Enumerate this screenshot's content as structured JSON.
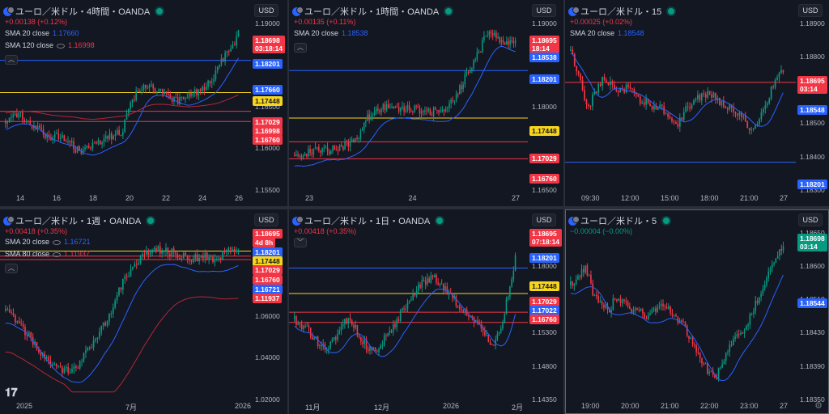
{
  "currency_label": "USD",
  "colors": {
    "up": "#089981",
    "down": "#f23645",
    "sma_blue": "#2962ff",
    "sma_red": "#f23645",
    "support_blue": "#2962ff",
    "line_yellow": "#f7d51d",
    "line_red": "#f23645"
  },
  "icons": {
    "symbol": "currency-pair-icon",
    "live": "live-dot-icon",
    "collapse": "chevron-up-icon",
    "logo": "tradingview-logo-icon",
    "settings": "gear-icon"
  },
  "panels": [
    {
      "title": "ユーロ／米ドル・4時間・OANDA",
      "change": "+0.00138 (+0.12%)",
      "change_color": "#f23645",
      "indicators": [
        {
          "name": "SMA 20 close",
          "value": "1.17660",
          "color": "#2962ff"
        },
        {
          "name": "SMA 120 close",
          "value": "1.16998",
          "color": "#f23645"
        }
      ],
      "y_ticks": [
        "1.19000",
        "1.18000",
        "1.16500",
        "1.16000",
        "1.15500"
      ],
      "x_ticks": [
        "14",
        "16",
        "18",
        "20",
        "22",
        "24",
        "26"
      ],
      "price_tags": [
        {
          "text": "1.18698",
          "sub": "03:18:14",
          "kind": "red"
        },
        {
          "text": "1.18201",
          "kind": "blue"
        },
        {
          "text": "1.17660",
          "kind": "blue"
        },
        {
          "text": "1.17448",
          "kind": "yellow"
        },
        {
          "text": "1.17029",
          "kind": "red"
        },
        {
          "text": "1.16998",
          "kind": "red"
        },
        {
          "text": "1.16760",
          "kind": "red"
        }
      ]
    },
    {
      "title": "ユーロ／米ドル・1時間・OANDA",
      "change": "+0.00135 (+0.11%)",
      "change_color": "#f23645",
      "indicators": [
        {
          "name": "SMA 20 close",
          "value": "1.18538",
          "color": "#2962ff"
        }
      ],
      "y_ticks": [
        "1.19000",
        "1.18000",
        "1.16500"
      ],
      "x_ticks": [
        "23",
        "24",
        "27"
      ],
      "price_tags": [
        {
          "text": "1.18695",
          "sub": "18:14",
          "kind": "red"
        },
        {
          "text": "1.18538",
          "kind": "blue"
        },
        {
          "text": "1.18201",
          "kind": "blue"
        },
        {
          "text": "1.17448",
          "kind": "yellow"
        },
        {
          "text": "1.17029",
          "kind": "red"
        },
        {
          "text": "1.16760",
          "kind": "red"
        }
      ]
    },
    {
      "title": "ユーロ／米ドル・15",
      "change": "+0.00025 (+0.02%)",
      "change_color": "#f23645",
      "indicators": [
        {
          "name": "SMA 20 close",
          "value": "1.18548",
          "color": "#2962ff"
        }
      ],
      "y_ticks": [
        "1.18900",
        "1.18800",
        "1.18600",
        "1.18500",
        "1.18400",
        "1.18300"
      ],
      "x_ticks": [
        "09:30",
        "12:00",
        "15:00",
        "18:00",
        "21:00",
        "27"
      ],
      "price_tags": [
        {
          "text": "1.18695",
          "sub": "03:14",
          "kind": "red"
        },
        {
          "text": "1.18548",
          "kind": "blue"
        },
        {
          "text": "1.18201",
          "kind": "blue"
        }
      ]
    },
    {
      "title": "ユーロ／米ドル・1週・OANDA",
      "change": "+0.00418 (+0.35%)",
      "change_color": "#f23645",
      "indicators": [
        {
          "name": "SMA 20 close",
          "value": "1.16721",
          "color": "#2962ff"
        },
        {
          "name": "SMA 80 close",
          "value": "1.11937",
          "color": "#f23645"
        }
      ],
      "y_ticks": [
        "1.10000",
        "1.08000",
        "1.06000",
        "1.04000",
        "1.02000"
      ],
      "x_ticks": [
        "2025",
        "7月",
        "2026"
      ],
      "price_tags": [
        {
          "text": "1.18695",
          "kind": "red"
        },
        {
          "text": "4d 8h",
          "kind": "red"
        },
        {
          "text": "1.18201",
          "kind": "blue"
        },
        {
          "text": "1.17448",
          "kind": "yellow"
        },
        {
          "text": "1.17029",
          "kind": "red"
        },
        {
          "text": "1.16760",
          "kind": "red"
        },
        {
          "text": "1.16721",
          "kind": "blue"
        },
        {
          "text": "1.11937",
          "kind": "red"
        }
      ]
    },
    {
      "title": "ユーロ／米ドル・1日・OANDA",
      "change": "+0.00418 (+0.35%)",
      "change_color": "#f23645",
      "indicators": [],
      "y_ticks": [
        "1.19000",
        "1.18000",
        "1.15900",
        "1.15300",
        "1.14800",
        "1.14350"
      ],
      "x_ticks": [
        "11月",
        "12月",
        "2026",
        "2月"
      ],
      "price_tags": [
        {
          "text": "1.18695",
          "sub": "07:18:14",
          "kind": "red"
        },
        {
          "text": "1.18201",
          "kind": "blue"
        },
        {
          "text": "1.17448",
          "kind": "yellow"
        },
        {
          "text": "1.17029",
          "kind": "red"
        },
        {
          "text": "1.17022",
          "kind": "blue"
        },
        {
          "text": "1.16760",
          "kind": "red"
        }
      ]
    },
    {
      "title": "ユーロ／米ドル・5",
      "change": "−0.00004 (−0.00%)",
      "change_color": "#089981",
      "indicators": [],
      "y_ticks": [
        "1.18650",
        "1.18600",
        "1.18510",
        "1.18430",
        "1.18390",
        "1.18350"
      ],
      "x_ticks": [
        "19:00",
        "20:00",
        "21:00",
        "22:00",
        "23:00",
        "27"
      ],
      "price_tags": [
        {
          "text": "1.18698",
          "sub": "03:14",
          "kind": "green"
        },
        {
          "text": "1.18544",
          "kind": "blue"
        }
      ]
    }
  ]
}
